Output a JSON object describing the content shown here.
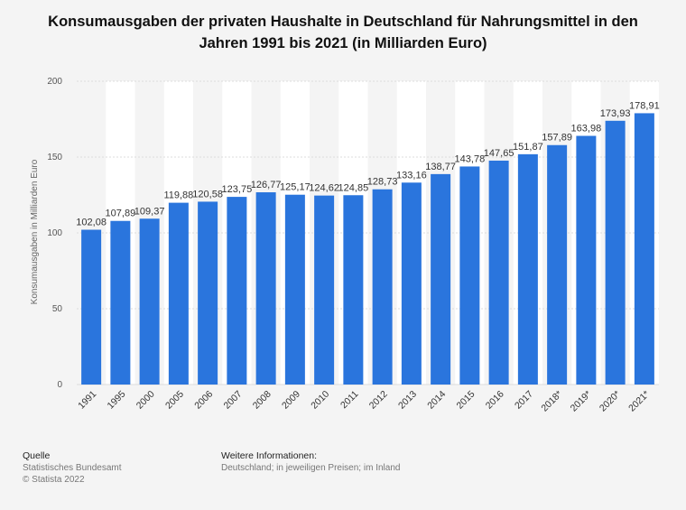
{
  "chart_data": {
    "type": "bar",
    "title": "Konsumausgaben der privaten Haushalte in Deutschland für Nahrungsmittel in den Jahren 1991 bis 2021 (in Milliarden Euro)",
    "ylabel": "Konsumausgaben in Milliarden Euro",
    "xlabel": "",
    "ylim": [
      0,
      200
    ],
    "yticks": [
      "0",
      "50",
      "100",
      "150",
      "200"
    ],
    "categories": [
      "1991",
      "1995",
      "2000",
      "2005",
      "2006",
      "2007",
      "2008",
      "2009",
      "2010",
      "2011",
      "2012",
      "2013",
      "2014",
      "2015",
      "2016",
      "2017",
      "2018*",
      "2019*",
      "2020*",
      "2021*"
    ],
    "values": [
      102.08,
      107.89,
      109.37,
      119.88,
      120.58,
      123.75,
      126.77,
      125.17,
      124.62,
      124.85,
      128.73,
      133.16,
      138.77,
      143.78,
      147.65,
      151.87,
      157.89,
      163.98,
      173.93,
      178.91
    ],
    "value_labels": [
      "102,08",
      "107,89",
      "109,37",
      "119,88",
      "120,58",
      "123,75",
      "126,77",
      "125,17",
      "124,62",
      "124,85",
      "128,73",
      "133,16",
      "138,77",
      "143,78",
      "147,65",
      "151,87",
      "157,89",
      "163,98",
      "173,93",
      "178,91"
    ],
    "bar_color": "#2a75dd",
    "grid": true,
    "legend": "none"
  },
  "footer": {
    "source_heading": "Quelle",
    "source_lines": [
      "Statistisches Bundesamt",
      "© Statista 2022"
    ],
    "info_heading": "Weitere Informationen:",
    "info_lines": [
      "Deutschland; in jeweiligen Preisen; im Inland"
    ]
  }
}
